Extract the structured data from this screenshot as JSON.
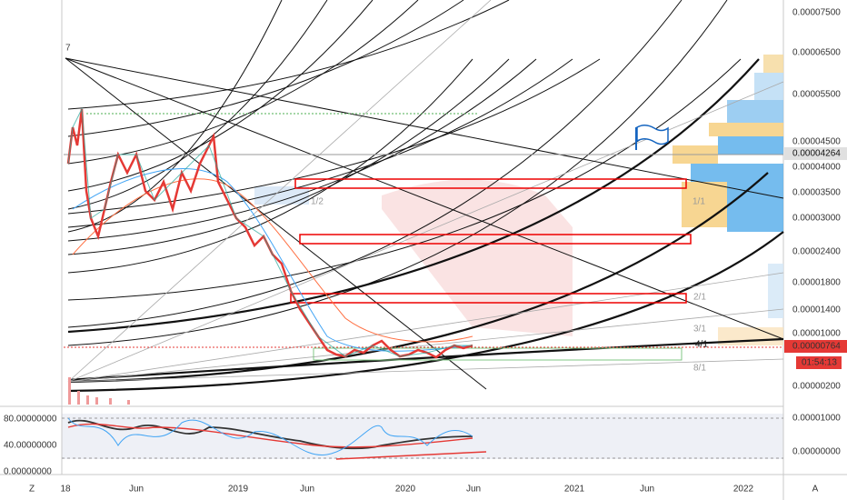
{
  "price_axis": {
    "labels": [
      "0.00007500",
      "0.00006500",
      "0.00005500",
      "0.00004500",
      "0.00004000",
      "0.00003500",
      "0.00003000",
      "0.00002400",
      "0.00001800",
      "0.00001400",
      "0.00001000",
      "0.00000200"
    ],
    "last_price": "0.00000764",
    "countdown": "01:54:13",
    "marked_price": "0.00004264"
  },
  "indicator_axis": {
    "right_labels": [
      "0.00001000",
      "0.00000000"
    ],
    "left_labels": [
      "80.00000000",
      "40.00000000",
      "0.00000000"
    ]
  },
  "time_axis": {
    "zoom": "Z",
    "labels": [
      "18",
      "Jun",
      "2019",
      "Jun",
      "2020",
      "Jun",
      "2021",
      "Jun",
      "2022"
    ],
    "auto": "A"
  },
  "fan_labels": [
    "1/2",
    "1/1",
    "2/1",
    "3/1",
    "4/1",
    "8/1"
  ],
  "pivot_label": "7"
}
